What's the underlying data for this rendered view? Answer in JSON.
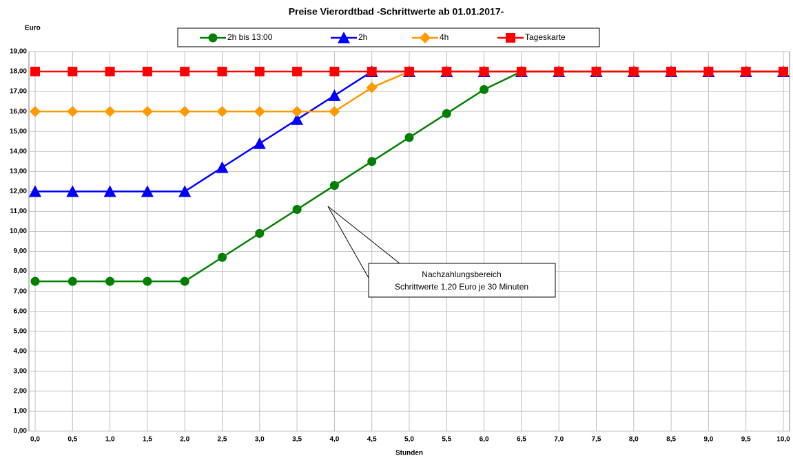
{
  "chart_data": {
    "type": "line",
    "title": "Preise Vierordtbad -Schrittwerte ab 01.01.2017-",
    "ylabel": "Euro",
    "xlabel": "Stunden",
    "x": [
      0,
      0.5,
      1,
      1.5,
      2,
      2.5,
      3,
      3.5,
      4,
      4.5,
      5,
      5.5,
      6,
      6.5,
      7,
      7.5,
      8,
      8.5,
      9,
      9.5,
      10
    ],
    "series": [
      {
        "name": "2h bis 13:00",
        "color": "#008000",
        "marker": "circle",
        "values": [
          7.5,
          7.5,
          7.5,
          7.5,
          7.5,
          8.7,
          9.9,
          11.1,
          12.3,
          13.5,
          14.7,
          15.9,
          17.1,
          18,
          18,
          18,
          18,
          18,
          18,
          18,
          18
        ]
      },
      {
        "name": "2h",
        "color": "#0000ff",
        "marker": "triangle",
        "values": [
          12,
          12,
          12,
          12,
          12,
          13.2,
          14.4,
          15.6,
          16.8,
          18,
          18,
          18,
          18,
          18,
          18,
          18,
          18,
          18,
          18,
          18,
          18
        ]
      },
      {
        "name": "4h",
        "color": "#ff9900",
        "marker": "diamond",
        "values": [
          16,
          16,
          16,
          16,
          16,
          16,
          16,
          16,
          16,
          17.2,
          18,
          18,
          18,
          18,
          18,
          18,
          18,
          18,
          18,
          18,
          18
        ]
      },
      {
        "name": "Tageskarte",
        "color": "#ff0000",
        "marker": "square",
        "values": [
          18,
          18,
          18,
          18,
          18,
          18,
          18,
          18,
          18,
          18,
          18,
          18,
          18,
          18,
          18,
          18,
          18,
          18,
          18,
          18,
          18
        ]
      }
    ],
    "xlim": [
      0,
      10
    ],
    "xticks": [
      {
        "value": 0,
        "label": "0,0"
      },
      {
        "value": 0.5,
        "label": "0,5"
      },
      {
        "value": 1,
        "label": "1,0"
      },
      {
        "value": 1.5,
        "label": "1,5"
      },
      {
        "value": 2,
        "label": "2,0"
      },
      {
        "value": 2.5,
        "label": "2,5"
      },
      {
        "value": 3,
        "label": "3,0"
      },
      {
        "value": 3.5,
        "label": "3,5"
      },
      {
        "value": 4,
        "label": "4,0"
      },
      {
        "value": 4.5,
        "label": "4,5"
      },
      {
        "value": 5,
        "label": "5,0"
      },
      {
        "value": 5.5,
        "label": "5,5"
      },
      {
        "value": 6,
        "label": "6,0"
      },
      {
        "value": 6.5,
        "label": "6,5"
      },
      {
        "value": 7,
        "label": "7,0"
      },
      {
        "value": 7.5,
        "label": "7,5"
      },
      {
        "value": 8,
        "label": "8,0"
      },
      {
        "value": 8.5,
        "label": "8,5"
      },
      {
        "value": 9,
        "label": "9,0"
      },
      {
        "value": 9.5,
        "label": "9,5"
      },
      {
        "value": 10,
        "label": "10,0"
      }
    ],
    "ylim": [
      0,
      19
    ],
    "yticks": [
      {
        "value": 0,
        "label": "0,00"
      },
      {
        "value": 1,
        "label": "1,00"
      },
      {
        "value": 2,
        "label": "2,00"
      },
      {
        "value": 3,
        "label": "3,00"
      },
      {
        "value": 4,
        "label": "4,00"
      },
      {
        "value": 5,
        "label": "5,00"
      },
      {
        "value": 6,
        "label": "6,00"
      },
      {
        "value": 7,
        "label": "7,00"
      },
      {
        "value": 8,
        "label": "8,00"
      },
      {
        "value": 9,
        "label": "9,00"
      },
      {
        "value": 10,
        "label": "10,00"
      },
      {
        "value": 11,
        "label": "11,00"
      },
      {
        "value": 12,
        "label": "12,00"
      },
      {
        "value": 13,
        "label": "13,00"
      },
      {
        "value": 14,
        "label": "14,00"
      },
      {
        "value": 15,
        "label": "15,00"
      },
      {
        "value": 16,
        "label": "16,00"
      },
      {
        "value": 17,
        "label": "17,00"
      },
      {
        "value": 18,
        "label": "18,00"
      },
      {
        "value": 19,
        "label": "19,00"
      }
    ],
    "grid": true,
    "legend": "top",
    "annotation": [
      "Nachzahlungsbereich",
      "Schrittwerte 1,20 Euro je 30 Minuten"
    ]
  }
}
